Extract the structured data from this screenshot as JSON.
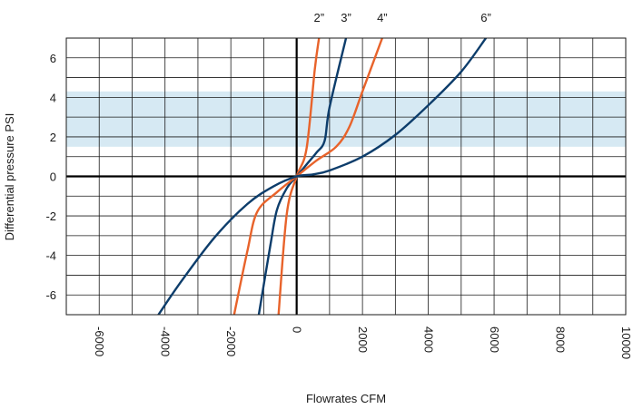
{
  "chart_data": {
    "type": "line",
    "xlabel": "Flowrates CFM",
    "ylabel": "Differential pressure PSI",
    "xlim": [
      -7000,
      10000
    ],
    "ylim": [
      -7,
      7
    ],
    "x_ticks": [
      "-6000",
      "-4000",
      "-2000",
      "0",
      "2000",
      "4000",
      "6000",
      "8000",
      "10000"
    ],
    "y_ticks": [
      "6",
      "4",
      "2",
      "0",
      "-2",
      "-4",
      "-6"
    ],
    "grid": true,
    "highlight_band": {
      "y": [
        1.5,
        4.3
      ],
      "color": "#d6e9f3"
    },
    "series": [
      {
        "name": "2”",
        "color": "#e8632b",
        "points": [
          [
            -550,
            -7
          ],
          [
            -300,
            -1.9
          ],
          [
            0,
            0
          ],
          [
            300,
            1.4
          ],
          [
            550,
            5.4
          ],
          [
            680,
            7
          ]
        ]
      },
      {
        "name": "3”",
        "color": "#0d3d6b",
        "points": [
          [
            -1150,
            -7
          ],
          [
            -800,
            -3.5
          ],
          [
            -600,
            -1.7
          ],
          [
            -300,
            -0.6
          ],
          [
            0,
            0
          ],
          [
            300,
            0.6
          ],
          [
            600,
            1.2
          ],
          [
            850,
            1.8
          ],
          [
            1000,
            3.5
          ],
          [
            1500,
            7
          ]
        ]
      },
      {
        "name": "4”",
        "color": "#e8632b",
        "points": [
          [
            -1900,
            -7
          ],
          [
            -1500,
            -3.8
          ],
          [
            -1200,
            -1.8
          ],
          [
            -600,
            -0.8
          ],
          [
            0,
            0
          ],
          [
            600,
            0.8
          ],
          [
            1200,
            1.5
          ],
          [
            1600,
            2.5
          ],
          [
            2000,
            4.3
          ],
          [
            2600,
            7
          ]
        ]
      },
      {
        "name": "6”",
        "color": "#0d3d6b",
        "points": [
          [
            -4200,
            -7
          ],
          [
            -3500,
            -5.3
          ],
          [
            -2500,
            -3.1
          ],
          [
            -1500,
            -1.4
          ],
          [
            -700,
            -0.5
          ],
          [
            0,
            0
          ],
          [
            500,
            0.1
          ],
          [
            1000,
            0.3
          ],
          [
            2000,
            1.0
          ],
          [
            3000,
            2.1
          ],
          [
            4000,
            3.6
          ],
          [
            5000,
            5.3
          ],
          [
            5750,
            7
          ]
        ]
      }
    ]
  }
}
